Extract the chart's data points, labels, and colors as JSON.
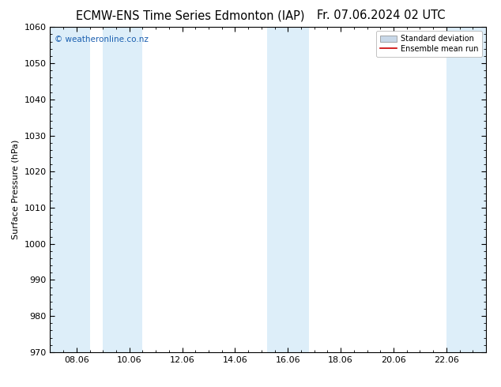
{
  "title_left": "ECMW-ENS Time Series Edmonton (IAP)",
  "title_right": "Fr. 07.06.2024 02 UTC",
  "ylabel": "Surface Pressure (hPa)",
  "ylim": [
    970,
    1060
  ],
  "yticks": [
    970,
    980,
    990,
    1000,
    1010,
    1020,
    1030,
    1040,
    1050,
    1060
  ],
  "xlim_start": 7.0,
  "xlim_end": 23.5,
  "xtick_labels": [
    "08.06",
    "10.06",
    "12.06",
    "14.06",
    "16.06",
    "18.06",
    "20.06",
    "22.06"
  ],
  "xtick_positions": [
    8,
    10,
    12,
    14,
    16,
    18,
    20,
    22
  ],
  "shaded_bands": [
    {
      "x_start": 7.0,
      "x_end": 8.5
    },
    {
      "x_start": 9.0,
      "x_end": 10.5
    },
    {
      "x_start": 15.2,
      "x_end": 16.8
    },
    {
      "x_start": 22.0,
      "x_end": 23.5
    }
  ],
  "band_color": "#ddeef9",
  "watermark_text": "© weatheronline.co.nz",
  "watermark_color": "#1a5fb0",
  "legend_std_dev_color": "#c8d8e8",
  "legend_mean_color": "#cc0000",
  "bg_color": "#ffffff",
  "title_fontsize": 10.5,
  "axis_label_fontsize": 8,
  "tick_fontsize": 8,
  "legend_fontsize": 7
}
